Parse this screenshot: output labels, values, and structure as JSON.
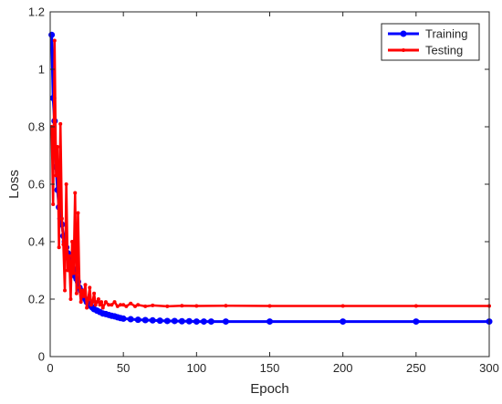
{
  "chart_data": {
    "type": "line",
    "title": "",
    "xlabel": "Epoch",
    "ylabel": "Loss",
    "xlim": [
      0,
      300
    ],
    "ylim": [
      0,
      1.2
    ],
    "xticks": [
      0,
      50,
      100,
      150,
      200,
      250,
      300
    ],
    "yticks": [
      0,
      0.2,
      0.4,
      0.6,
      0.8,
      1,
      1.2
    ],
    "xtick_labels": [
      "0",
      "50",
      "100",
      "150",
      "200",
      "250",
      "300"
    ],
    "ytick_labels": [
      "0",
      "0.2",
      "0.4",
      "0.6",
      "0.8",
      "1",
      "1.2"
    ],
    "grid": false,
    "legend_position": "top-right",
    "series": [
      {
        "name": "Training",
        "color": "#0000ff",
        "marker": "circle",
        "x": [
          1,
          2,
          3,
          4,
          5,
          6,
          7,
          8,
          9,
          10,
          11,
          12,
          13,
          14,
          15,
          16,
          17,
          18,
          19,
          20,
          21,
          22,
          23,
          24,
          25,
          26,
          27,
          28,
          29,
          30,
          32,
          34,
          36,
          38,
          40,
          42,
          44,
          46,
          48,
          50,
          55,
          60,
          65,
          70,
          75,
          80,
          85,
          90,
          95,
          100,
          105,
          110,
          120,
          150,
          200,
          250,
          300
        ],
        "values": [
          1.12,
          0.9,
          0.82,
          0.66,
          0.58,
          0.52,
          0.48,
          0.46,
          0.42,
          0.4,
          0.38,
          0.36,
          0.34,
          0.33,
          0.31,
          0.3,
          0.28,
          0.27,
          0.26,
          0.24,
          0.23,
          0.22,
          0.21,
          0.2,
          0.19,
          0.185,
          0.18,
          0.175,
          0.17,
          0.165,
          0.16,
          0.155,
          0.15,
          0.148,
          0.145,
          0.142,
          0.14,
          0.137,
          0.134,
          0.132,
          0.13,
          0.128,
          0.127,
          0.126,
          0.125,
          0.124,
          0.124,
          0.123,
          0.123,
          0.122,
          0.122,
          0.122,
          0.122,
          0.122,
          0.122,
          0.122,
          0.122
        ]
      },
      {
        "name": "Testing",
        "color": "#ff0000",
        "marker": "point",
        "x": [
          1,
          2,
          3,
          4,
          5,
          6,
          7,
          8,
          9,
          10,
          11,
          12,
          13,
          14,
          15,
          16,
          17,
          18,
          19,
          20,
          21,
          22,
          23,
          24,
          25,
          26,
          27,
          28,
          29,
          30,
          31,
          32,
          33,
          34,
          35,
          36,
          38,
          40,
          42,
          44,
          46,
          48,
          50,
          52,
          55,
          58,
          60,
          65,
          70,
          80,
          90,
          100,
          120,
          150,
          200,
          250,
          300
        ],
        "values": [
          0.8,
          0.53,
          1.1,
          0.63,
          0.73,
          0.38,
          0.81,
          0.48,
          0.39,
          0.23,
          0.6,
          0.3,
          0.35,
          0.2,
          0.4,
          0.29,
          0.57,
          0.22,
          0.5,
          0.24,
          0.19,
          0.23,
          0.21,
          0.25,
          0.17,
          0.2,
          0.24,
          0.18,
          0.19,
          0.22,
          0.18,
          0.19,
          0.2,
          0.18,
          0.19,
          0.17,
          0.19,
          0.18,
          0.18,
          0.19,
          0.175,
          0.18,
          0.18,
          0.175,
          0.185,
          0.175,
          0.18,
          0.175,
          0.178,
          0.175,
          0.177,
          0.176,
          0.177,
          0.176,
          0.176,
          0.176,
          0.176
        ]
      }
    ]
  }
}
